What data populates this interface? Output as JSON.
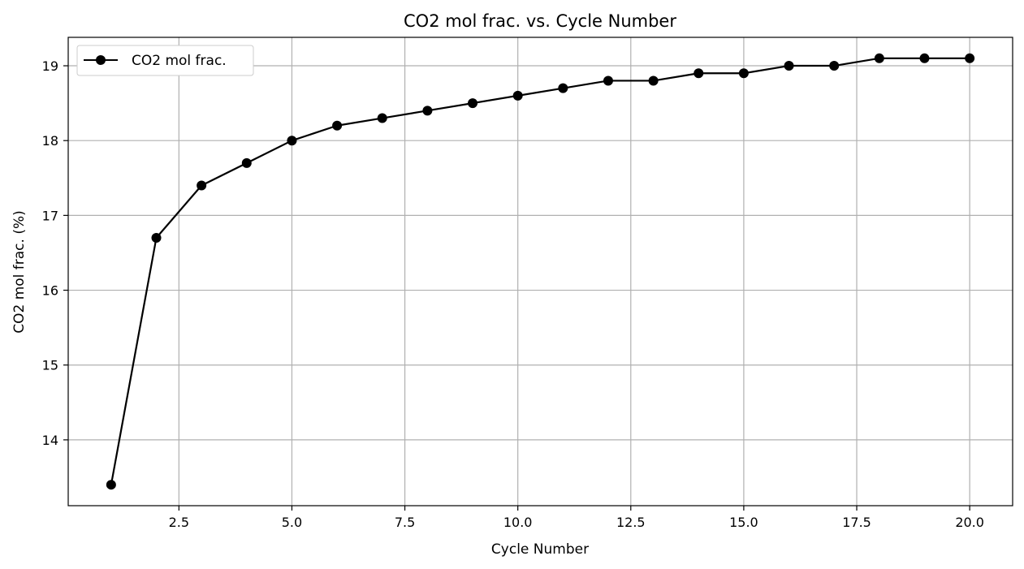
{
  "chart_data": {
    "type": "line",
    "title": "CO2 mol frac. vs. Cycle Number",
    "xlabel": "Cycle Number",
    "ylabel": "CO2 mol frac. (%)",
    "xlim": [
      0.05,
      20.95
    ],
    "ylim": [
      13.12,
      19.38
    ],
    "xticks": [
      2.5,
      5.0,
      7.5,
      10.0,
      12.5,
      15.0,
      17.5,
      20.0
    ],
    "xtick_labels": [
      "2.5",
      "5.0",
      "7.5",
      "10.0",
      "12.5",
      "15.0",
      "17.5",
      "20.0"
    ],
    "yticks": [
      14,
      15,
      16,
      17,
      18,
      19
    ],
    "ytick_labels": [
      "14",
      "15",
      "16",
      "17",
      "18",
      "19"
    ],
    "grid": true,
    "legend_position": "top-left",
    "series": [
      {
        "name": "CO2 mol frac.",
        "color": "#000000",
        "marker": "circle",
        "x": [
          1,
          2,
          3,
          4,
          5,
          6,
          7,
          8,
          9,
          10,
          11,
          12,
          13,
          14,
          15,
          16,
          17,
          18,
          19,
          20
        ],
        "values": [
          13.4,
          16.7,
          17.4,
          17.7,
          18.0,
          18.2,
          18.3,
          18.4,
          18.5,
          18.6,
          18.7,
          18.8,
          18.8,
          18.9,
          18.9,
          19.0,
          19.0,
          19.1,
          19.1,
          19.1
        ]
      }
    ]
  }
}
